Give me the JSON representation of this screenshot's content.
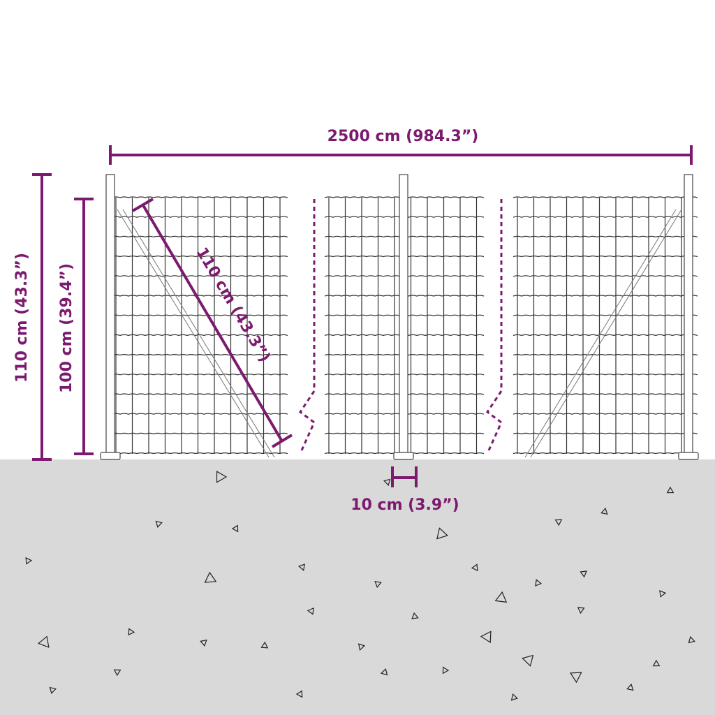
{
  "colors": {
    "accent": "#7b1a6e",
    "ground": "#d9d9d9",
    "wire": "#333333"
  },
  "dimensions": {
    "total_length": "2500 cm (984.3”)",
    "total_height": "110 cm (43.3”)",
    "mesh_height": "100 cm (39.4”)",
    "post_length": "110 cm (43.3”)",
    "post_spacing_base": "10 cm (3.9”)"
  }
}
